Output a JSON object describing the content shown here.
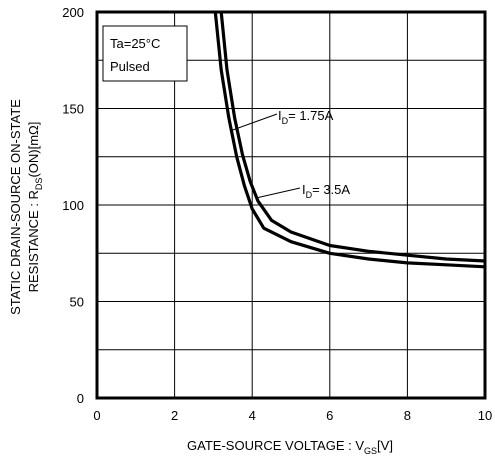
{
  "chart_data": {
    "type": "line",
    "title": "",
    "xlabel": {
      "main": "GATE-SOURCE VOLTAGE : V",
      "sub": "GS",
      "unit": "[V]"
    },
    "ylabel": {
      "line1": "STATIC DRAIN-SOURCE ON-STATE",
      "line2_main": "RESISTANCE : R",
      "line2_sub": "DS",
      "line2_unit": "(ON)[mΩ]"
    },
    "xlim": [
      0,
      10
    ],
    "ylim": [
      0,
      200
    ],
    "x_ticks": [
      "0",
      "2",
      "4",
      "6",
      "8",
      "10"
    ],
    "y_ticks": [
      "0",
      "50",
      "100",
      "150",
      "200"
    ],
    "x_grid": [
      0,
      2,
      4,
      6,
      8,
      10
    ],
    "y_grid": [
      0,
      25,
      50,
      75,
      100,
      125,
      150,
      175,
      200
    ],
    "grid": true,
    "conditions": [
      "Ta=25°C",
      "Pulsed"
    ],
    "series": [
      {
        "label_main": "I",
        "label_sub": "D",
        "label_value": "= 1.75A",
        "x": [
          3.05,
          3.2,
          3.4,
          3.6,
          3.8,
          4.0,
          4.3,
          5.0,
          6.0,
          7.0,
          8.0,
          9.0,
          10.0
        ],
        "y": [
          200,
          170,
          145,
          125,
          110,
          98,
          88,
          81,
          75,
          72,
          70,
          69,
          68
        ]
      },
      {
        "label_main": "I",
        "label_sub": "D",
        "label_value": "= 3.5A",
        "x": [
          3.2,
          3.35,
          3.55,
          3.75,
          3.95,
          4.15,
          4.5,
          5.0,
          6.0,
          7.0,
          8.0,
          9.0,
          10.0
        ],
        "y": [
          200,
          170,
          145,
          126,
          112,
          102,
          92,
          86,
          79,
          76,
          74,
          72,
          71
        ]
      }
    ]
  }
}
